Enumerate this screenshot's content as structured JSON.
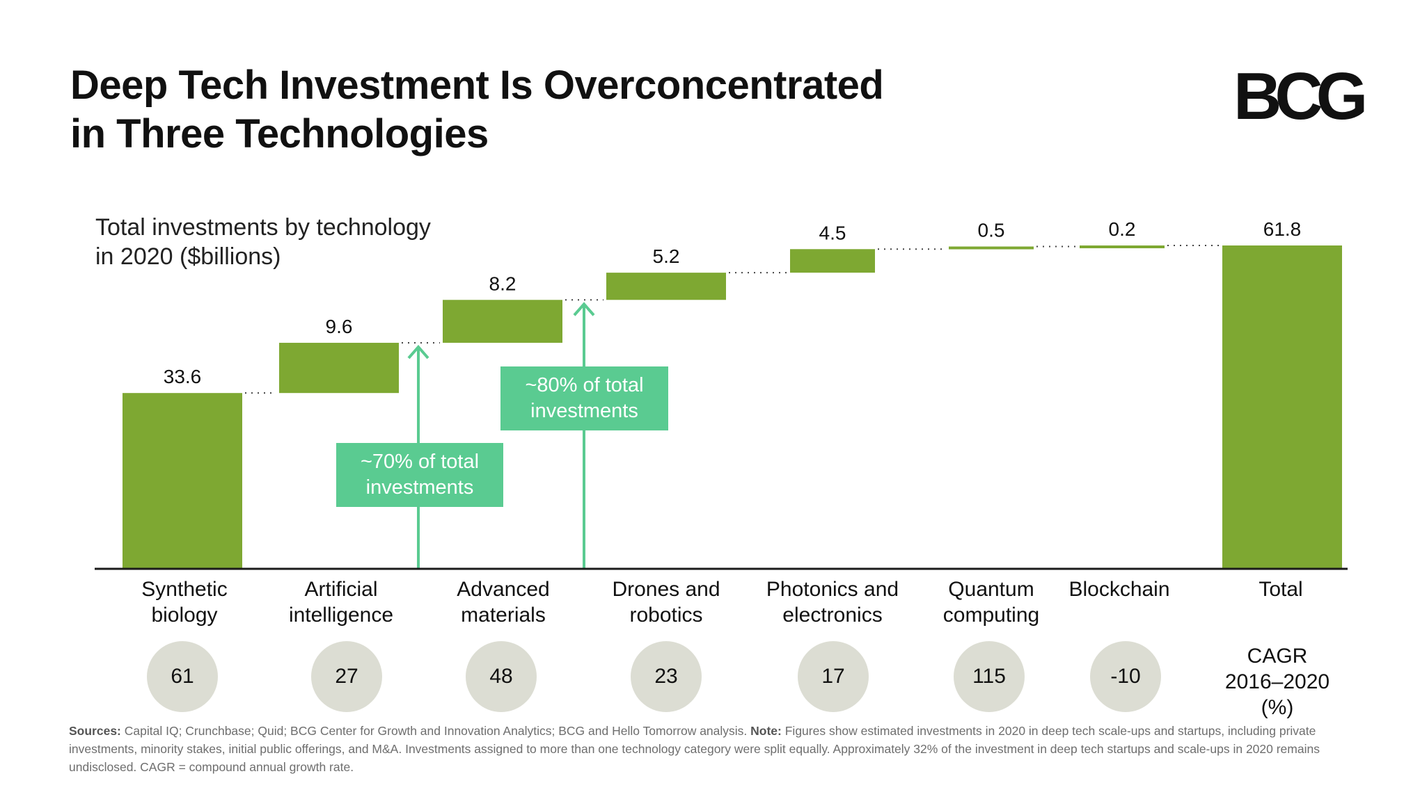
{
  "title_lines": [
    "Deep Tech Investment Is Overconcentrated",
    "in Three Technologies"
  ],
  "logo_text": "BCG",
  "subtitle_lines": [
    "Total investments by technology",
    "in 2020 ($billions)"
  ],
  "colors": {
    "bar": "#7ea832",
    "callout": "#5acb91",
    "circle": "#dcddd3",
    "axis": "#1a1a1a"
  },
  "chart_data": {
    "type": "waterfall",
    "title": "Total investments by technology in 2020 ($billions)",
    "categories": [
      [
        "Synthetic",
        "biology"
      ],
      [
        "Artificial",
        "intelligence"
      ],
      [
        "Advanced",
        "materials"
      ],
      [
        "Drones and",
        "robotics"
      ],
      [
        "Photonics and",
        "electronics"
      ],
      [
        "Quantum",
        "computing"
      ],
      [
        "Blockchain"
      ],
      [
        "Total"
      ]
    ],
    "values": [
      33.6,
      9.6,
      8.2,
      5.2,
      4.5,
      0.5,
      0.2,
      61.8
    ],
    "value_labels": [
      "33.6",
      "9.6",
      "8.2",
      "5.2",
      "4.5",
      "0.5",
      "0.2",
      "61.8"
    ],
    "total_index": 7,
    "ylim": [
      0,
      61.8
    ],
    "cagr_label_lines": [
      "CAGR",
      "2016–2020",
      "(%)"
    ],
    "cagr_values": [
      "61",
      "27",
      "48",
      "23",
      "17",
      "115",
      "-10"
    ],
    "annotations": [
      {
        "text_lines": [
          "~70% of total",
          "investments"
        ],
        "after_category": 1
      },
      {
        "text_lines": [
          "~80% of total",
          "investments"
        ],
        "after_category": 2
      }
    ]
  },
  "sources": {
    "sources_label": "Sources:",
    "sources_text": " Capital IQ; Crunchbase; Quid; BCG Center for Growth and Innovation Analytics; BCG and Hello Tomorrow analysis. ",
    "note_label": "Note:",
    "note_text": " Figures show estimated investments in 2020 in deep tech scale-ups and startups, including private investments, minority stakes, initial public offerings, and M&A. Investments assigned to more than one technology category were split equally. Approximately 32% of the investment in deep tech startups and scale-ups in 2020 remains undisclosed. CAGR = compound annual growth rate."
  }
}
